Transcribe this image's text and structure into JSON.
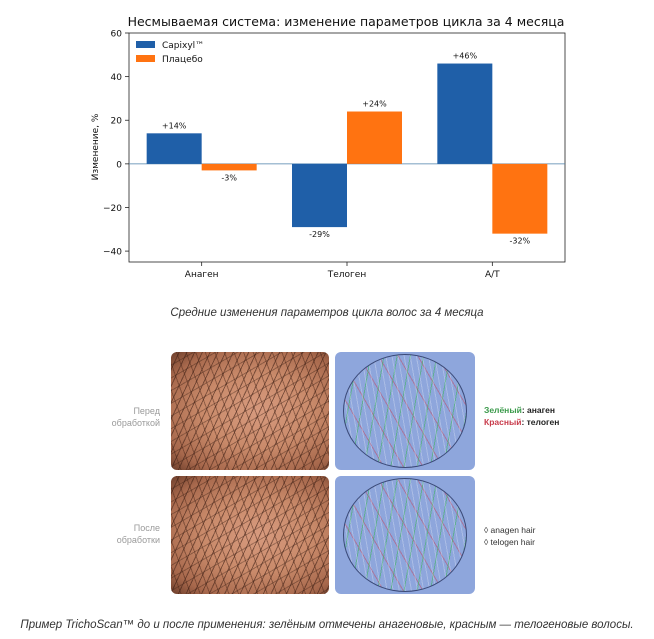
{
  "chart_data": {
    "type": "bar",
    "title": "Несмываемая система: изменение параметров цикла за 4 месяца",
    "ylabel": "Изменение, %",
    "categories": [
      "Анаген",
      "Телоген",
      "А/Т"
    ],
    "series": [
      {
        "name": "Capixyl™",
        "color": "#1f5fa8",
        "values": [
          14,
          -29,
          46
        ],
        "labels": [
          "+14%",
          "-29%",
          "+46%"
        ]
      },
      {
        "name": "Плацебо",
        "color": "#ff7311",
        "values": [
          -3,
          24,
          -32
        ],
        "labels": [
          "-3%",
          "+24%",
          "-32%"
        ]
      }
    ],
    "ylim": [
      -45,
      60
    ],
    "yticks": [
      -40,
      -20,
      0,
      20,
      40,
      60
    ],
    "legend_position": "top-left",
    "grid": false
  },
  "captions": {
    "chart": "Средние изменения параметров цикла волос за 4 месяца",
    "photos": "Пример TrichoScan™ до и после применения: зелёным отмечены анагеновые, красным — телогеновые волосы."
  },
  "photos": {
    "before_label": "Перед обработкой",
    "after_label": "После обработки",
    "legend_green_key": "Зелёный",
    "legend_green_value": ": анаген",
    "legend_red_key": "Красный",
    "legend_red_value": ": телоген",
    "legend_en_anagen": "◊ anagen hair",
    "legend_en_telogen": "◊ telogen hair"
  }
}
